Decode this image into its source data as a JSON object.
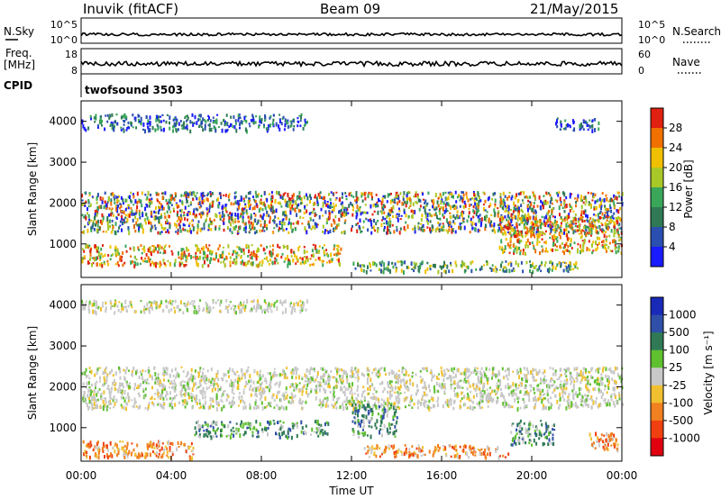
{
  "header": {
    "station": "Inuvik (fitACF)",
    "beam": "Beam 09",
    "date": "21/May/2015"
  },
  "left_labels": {
    "nsky": "N.Sky",
    "freq_line1": "Freq.",
    "freq_line2": "[MHz]",
    "cpid": "CPID"
  },
  "right_labels": {
    "nsearch": "N.Search",
    "nave": "Nave"
  },
  "cpid_value": "twofsound 3503",
  "chart_data": [
    {
      "type": "line",
      "name": "noise",
      "left_ticks": [
        "10^5",
        "10^0"
      ],
      "right_ticks": [
        "10^5",
        "10^0"
      ],
      "series": [
        {
          "name": "N.Sky",
          "level_fraction": 0.35
        },
        {
          "name": "N.Search",
          "style": "dotted"
        }
      ]
    },
    {
      "type": "line",
      "name": "frequency",
      "left_ticks": [
        "18",
        "8"
      ],
      "right_ticks": [
        "60",
        "0"
      ],
      "series": [
        {
          "name": "Freq.",
          "level_fraction": 0.4
        },
        {
          "name": "Nave",
          "style": "dotted"
        }
      ]
    },
    {
      "type": "heatmap",
      "name": "power",
      "ylabel": "Slant Range [km]",
      "xlim": [
        0,
        24
      ],
      "ylim": [
        180,
        4500
      ],
      "yticks": [
        "1000",
        "2000",
        "3000",
        "4000"
      ],
      "colorbar": {
        "label": "Power [dB]",
        "ticks": [
          "4",
          "8",
          "12",
          "16",
          "20",
          "24",
          "28"
        ],
        "colors": [
          "#1a1aff",
          "#2a4fb0",
          "#2f7a55",
          "#3aa65a",
          "#a8c828",
          "#f0c000",
          "#f07000",
          "#e02010"
        ]
      },
      "bands": [
        {
          "t": [
            0,
            24
          ],
          "r": [
            1300,
            2300
          ],
          "level": "mixed"
        },
        {
          "t": [
            0,
            11.5
          ],
          "r": [
            500,
            1000
          ],
          "level": "high"
        },
        {
          "t": [
            12,
            22
          ],
          "r": [
            350,
            600
          ],
          "level": "medium"
        },
        {
          "t": [
            0,
            10
          ],
          "r": [
            3800,
            4200
          ],
          "level": "low"
        },
        {
          "t": [
            21,
            23
          ],
          "r": [
            3800,
            4100
          ],
          "level": "low"
        },
        {
          "t": [
            18.5,
            24
          ],
          "r": [
            800,
            1700
          ],
          "level": "high"
        }
      ]
    },
    {
      "type": "heatmap",
      "name": "velocity",
      "ylabel": "Slant Range [km]",
      "xlabel": "Time UT",
      "xlim": [
        0,
        24
      ],
      "ylim": [
        180,
        4500
      ],
      "xticks": [
        "00:00",
        "04:00",
        "08:00",
        "12:00",
        "16:00",
        "20:00",
        "00:00"
      ],
      "yticks": [
        "1000",
        "2000",
        "3000",
        "4000"
      ],
      "colorbar": {
        "label": "Velocity [m s⁻¹]",
        "ticks": [
          "1000",
          "500",
          "100",
          "25",
          "-25",
          "-100",
          "-500",
          "-1000"
        ],
        "colors": [
          "#1a2ab8",
          "#2f4fa8",
          "#2f7a55",
          "#5fc030",
          "#c8c8c8",
          "#f0c030",
          "#f08020",
          "#f04010",
          "#e00010"
        ]
      },
      "bands": [
        {
          "t": [
            0,
            24
          ],
          "r": [
            1500,
            2500
          ],
          "level": "near-zero"
        },
        {
          "t": [
            0,
            5
          ],
          "r": [
            300,
            700
          ],
          "level": "negative"
        },
        {
          "t": [
            5,
            11
          ],
          "r": [
            800,
            1200
          ],
          "level": "positive"
        },
        {
          "t": [
            12,
            14
          ],
          "r": [
            800,
            1600
          ],
          "level": "positive"
        },
        {
          "t": [
            12.5,
            19
          ],
          "r": [
            300,
            600
          ],
          "level": "negative"
        },
        {
          "t": [
            19,
            21
          ],
          "r": [
            600,
            1200
          ],
          "level": "positive"
        },
        {
          "t": [
            22.5,
            24
          ],
          "r": [
            500,
            900
          ],
          "level": "negative"
        },
        {
          "t": [
            0,
            10
          ],
          "r": [
            3850,
            4150
          ],
          "level": "near-zero"
        }
      ]
    }
  ]
}
